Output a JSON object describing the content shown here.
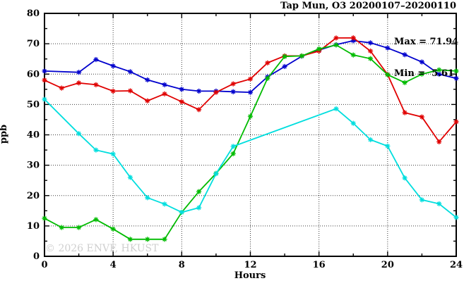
{
  "chart": {
    "title": "Tap Mun, O3 20200107–20200110",
    "stats": {
      "max_label": "Max = 71.94",
      "min_label": "Min =  5.61"
    },
    "watermark": "© 2026 ENVF, HKUST",
    "xlabel": "Hours",
    "ylabel": "ppb"
  },
  "chart_data": {
    "type": "line",
    "title": "Tap Mun, O3 20200107–20200110",
    "xlabel": "Hours",
    "ylabel": "ppb",
    "xlim": [
      0,
      24
    ],
    "ylim": [
      0,
      80
    ],
    "x_major_ticks": [
      0,
      4,
      8,
      12,
      16,
      20,
      24
    ],
    "x_minor_ticks": [
      2,
      6,
      10,
      14,
      18,
      22
    ],
    "y_major_ticks": [
      0,
      10,
      20,
      30,
      40,
      50,
      60,
      70,
      80
    ],
    "y_minor_ticks": [
      5,
      15,
      25,
      35,
      45,
      55,
      65,
      75
    ],
    "x_gridlines": [
      4,
      8,
      12,
      16,
      20
    ],
    "y_gridlines": [
      10,
      20,
      30,
      40,
      50,
      60,
      70
    ],
    "grid": "dotted",
    "legend_position": "none",
    "marker": "star",
    "stats": {
      "max": 71.94,
      "min": 5.61
    },
    "x": [
      0,
      1,
      2,
      3,
      4,
      5,
      6,
      7,
      8,
      9,
      10,
      11,
      12,
      13,
      14,
      15,
      16,
      17,
      18,
      19,
      20,
      21,
      22,
      23,
      24
    ],
    "series": [
      {
        "name": "blue",
        "color": "#0000cd",
        "values": [
          61.0,
          null,
          60.6,
          64.8,
          62.7,
          60.8,
          58.1,
          56.5,
          55.0,
          54.4,
          54.4,
          54.2,
          54.0,
          59.1,
          62.5,
          65.9,
          67.9,
          69.7,
          71.0,
          70.3,
          68.6,
          66.4,
          64.0,
          60.0,
          58.6
        ]
      },
      {
        "name": "red",
        "color": "#e00000",
        "values": [
          58.0,
          55.4,
          57.1,
          56.5,
          54.4,
          54.5,
          51.2,
          53.5,
          50.9,
          48.3,
          54.0,
          56.8,
          58.4,
          63.7,
          66.0,
          66.0,
          67.6,
          71.9,
          71.94,
          67.6,
          59.9,
          47.3,
          45.9,
          37.7,
          44.3
        ]
      },
      {
        "name": "green",
        "color": "#00bb00",
        "values": [
          12.5,
          9.5,
          9.5,
          12.1,
          9.0,
          5.61,
          5.61,
          5.61,
          14.5,
          21.3,
          27.3,
          33.8,
          46.1,
          58.6,
          65.8,
          66.0,
          68.3,
          69.6,
          66.3,
          65.1,
          59.8,
          57.2,
          60.0,
          61.4,
          61.0
        ]
      },
      {
        "name": "cyan",
        "color": "#00dede",
        "values": [
          51.7,
          null,
          40.4,
          35.0,
          33.7,
          26.0,
          19.3,
          17.2,
          14.5,
          16.0,
          27.2,
          36.2,
          null,
          null,
          null,
          null,
          null,
          48.6,
          43.8,
          38.4,
          36.3,
          25.8,
          18.6,
          17.3,
          12.8
        ]
      }
    ]
  },
  "style": {
    "border_color": "#000000",
    "grid_color": "#3c3c3c",
    "text_color": "#000000",
    "watermark_color": "#cfcfcf",
    "background": "#ffffff"
  }
}
